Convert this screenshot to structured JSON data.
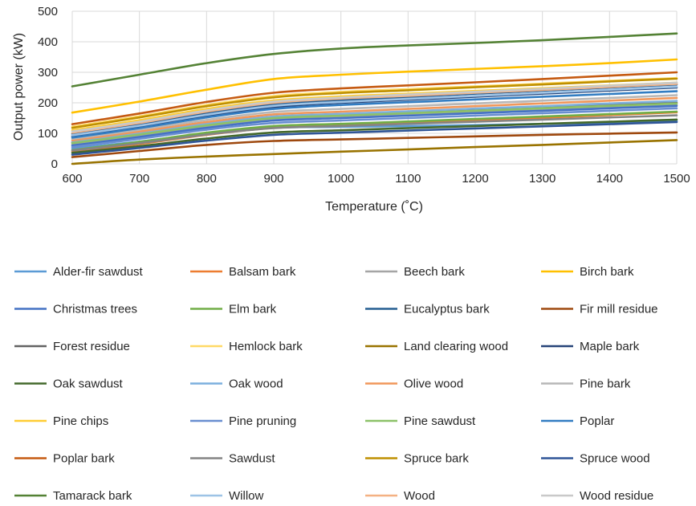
{
  "chart_data": {
    "type": "line",
    "xlabel": "Temperature (˚C)",
    "ylabel": "Output power (kW)",
    "xlim": [
      600,
      1500
    ],
    "ylim": [
      0,
      500
    ],
    "x_ticks": [
      "600",
      "700",
      "800",
      "900",
      "1000",
      "1100",
      "1200",
      "1300",
      "1400",
      "1500"
    ],
    "y_ticks": [
      "0",
      "100",
      "200",
      "300",
      "400",
      "500"
    ],
    "grid": "vertical and horizontal",
    "legend_position": "bottom",
    "x": [
      600,
      700,
      800,
      900,
      1000,
      1100,
      1200,
      1300,
      1400,
      1500
    ],
    "series": [
      {
        "name": "Alder-fir sawdust",
        "color": "#5b9bd5",
        "values": [
          50,
          73,
          100,
          118,
          121,
          124,
          127,
          131,
          135,
          140
        ]
      },
      {
        "name": "Balsam bark",
        "color": "#ed7d31",
        "values": [
          40,
          65,
          95,
          118,
          125,
          133,
          142,
          151,
          160,
          169
        ]
      },
      {
        "name": "Beech bark",
        "color": "#a5a5a5",
        "values": [
          64,
          92,
          122,
          146,
          154,
          162,
          170,
          178,
          186,
          194
        ]
      },
      {
        "name": "Birch bark",
        "color": "#ffc000",
        "values": [
          168,
          204,
          243,
          278,
          292,
          302,
          311,
          320,
          330,
          342
        ]
      },
      {
        "name": "Christmas trees",
        "color": "#4472c4",
        "values": [
          60,
          88,
          118,
          142,
          150,
          158,
          166,
          174,
          182,
          190
        ]
      },
      {
        "name": "Elm bark",
        "color": "#70ad47",
        "values": [
          45,
          72,
          102,
          124,
          131,
          139,
          147,
          155,
          163,
          171
        ]
      },
      {
        "name": "Eucalyptus bark",
        "color": "#255e91",
        "values": [
          98,
          130,
          167,
          196,
          209,
          219,
          230,
          240,
          250,
          260
        ]
      },
      {
        "name": "Fir mill residue",
        "color": "#9e480e",
        "values": [
          22,
          42,
          62,
          75,
          80,
          85,
          90,
          95,
          99,
          103
        ]
      },
      {
        "name": "Forest residue",
        "color": "#636363",
        "values": [
          70,
          98,
          128,
          152,
          160,
          168,
          176,
          184,
          192,
          200
        ]
      },
      {
        "name": "Hemlock bark",
        "color": "#ffd966",
        "values": [
          122,
          156,
          193,
          222,
          236,
          245,
          254,
          263,
          272,
          281
        ]
      },
      {
        "name": "Land clearing wood",
        "color": "#997300",
        "values": [
          0,
          14,
          24,
          32,
          40,
          47,
          55,
          62,
          70,
          78
        ]
      },
      {
        "name": "Maple bark",
        "color": "#264478",
        "values": [
          90,
          121,
          157,
          186,
          200,
          210,
          220,
          230,
          240,
          250
        ]
      },
      {
        "name": "Oak sawdust",
        "color": "#43682b",
        "values": [
          36,
          58,
          83,
          103,
          110,
          117,
          124,
          131,
          138,
          145
        ]
      },
      {
        "name": "Oak wood",
        "color": "#7cafdd",
        "values": [
          72,
          100,
          131,
          155,
          164,
          172,
          181,
          189,
          198,
          206
        ]
      },
      {
        "name": "Olive wood",
        "color": "#f1975a",
        "values": [
          77,
          106,
          137,
          162,
          171,
          180,
          189,
          198,
          207,
          216
        ]
      },
      {
        "name": "Pine bark",
        "color": "#b7b7b7",
        "values": [
          82,
          112,
          144,
          170,
          180,
          189,
          198,
          207,
          216,
          225
        ]
      },
      {
        "name": "Pine chips",
        "color": "#ffcd33",
        "values": [
          110,
          143,
          180,
          208,
          221,
          230,
          239,
          248,
          257,
          266
        ]
      },
      {
        "name": "Pine pruning",
        "color": "#698ed0",
        "values": [
          55,
          82,
          112,
          134,
          142,
          150,
          158,
          166,
          174,
          182
        ]
      },
      {
        "name": "Pine sawdust",
        "color": "#8cc168",
        "values": [
          68,
          96,
          126,
          150,
          158,
          166,
          174,
          182,
          190,
          198
        ]
      },
      {
        "name": "Poplar",
        "color": "#327dc2",
        "values": [
          86,
          117,
          152,
          180,
          193,
          202,
          211,
          220,
          229,
          238
        ]
      },
      {
        "name": "Poplar bark",
        "color": "#c55a11",
        "values": [
          130,
          165,
          203,
          233,
          247,
          257,
          267,
          278,
          289,
          300
        ]
      },
      {
        "name": "Sawdust",
        "color": "#848484",
        "values": [
          44,
          68,
          96,
          117,
          124,
          131,
          138,
          145,
          152,
          159
        ]
      },
      {
        "name": "Spruce bark",
        "color": "#bf9000",
        "values": [
          118,
          152,
          189,
          218,
          232,
          241,
          251,
          260,
          270,
          279
        ]
      },
      {
        "name": "Spruce wood",
        "color": "#2f5597",
        "values": [
          30,
          52,
          76,
          95,
          102,
          109,
          116,
          123,
          130,
          137
        ]
      },
      {
        "name": "Tamarack bark",
        "color": "#548235",
        "values": [
          254,
          292,
          330,
          360,
          378,
          388,
          396,
          405,
          416,
          427
        ]
      },
      {
        "name": "Willow",
        "color": "#9dc3e6",
        "values": [
          94,
          125,
          161,
          190,
          203,
          213,
          223,
          233,
          243,
          253
        ]
      },
      {
        "name": "Wood",
        "color": "#f4b183",
        "values": [
          102,
          134,
          171,
          200,
          214,
          223,
          233,
          242,
          252,
          262
        ]
      },
      {
        "name": "Wood residue",
        "color": "#c9c9c9",
        "values": [
          106,
          138,
          175,
          204,
          217,
          227,
          236,
          246,
          256,
          266
        ]
      }
    ]
  }
}
